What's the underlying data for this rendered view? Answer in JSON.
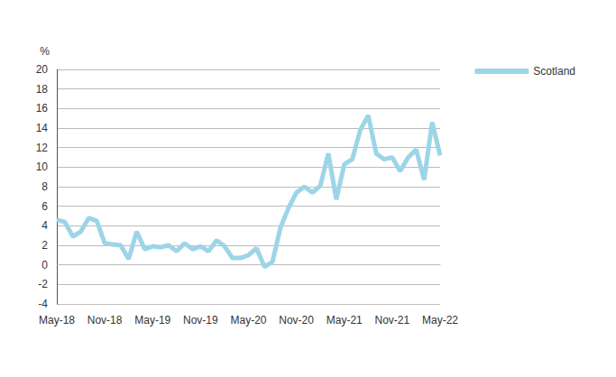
{
  "chart_data": {
    "type": "line",
    "y_label": "%",
    "categories": [
      "May-18",
      null,
      null,
      null,
      null,
      null,
      "Nov-18",
      null,
      null,
      null,
      null,
      null,
      "May-19",
      null,
      null,
      null,
      null,
      null,
      "Nov-19",
      null,
      null,
      null,
      null,
      null,
      "May-20",
      null,
      null,
      null,
      null,
      null,
      "Nov-20",
      null,
      null,
      null,
      null,
      null,
      "May-21",
      null,
      null,
      null,
      null,
      null,
      "Nov-21",
      null,
      null,
      null,
      null,
      null,
      "May-22"
    ],
    "series": [
      {
        "name": "Scotland",
        "color": "#9dd5e8",
        "values": [
          4.6,
          4.4,
          2.9,
          3.4,
          4.8,
          4.5,
          2.2,
          2.1,
          2.0,
          0.6,
          3.4,
          1.6,
          1.9,
          1.8,
          2.0,
          1.4,
          2.2,
          1.6,
          1.9,
          1.4,
          2.5,
          1.9,
          0.7,
          0.7,
          1.0,
          1.7,
          -0.2,
          0.3,
          3.8,
          5.8,
          7.4,
          8.0,
          7.4,
          8.1,
          11.4,
          6.7,
          10.3,
          10.8,
          13.8,
          15.3,
          11.4,
          10.8,
          11.0,
          9.6,
          11.0,
          11.8,
          8.7,
          14.6,
          11.2
        ]
      }
    ],
    "ylim": [
      -4,
      20
    ],
    "yticks": [
      -4,
      -2,
      0,
      2,
      4,
      6,
      8,
      10,
      12,
      14,
      16,
      18,
      20
    ],
    "grid": true,
    "legend": "top-right"
  }
}
